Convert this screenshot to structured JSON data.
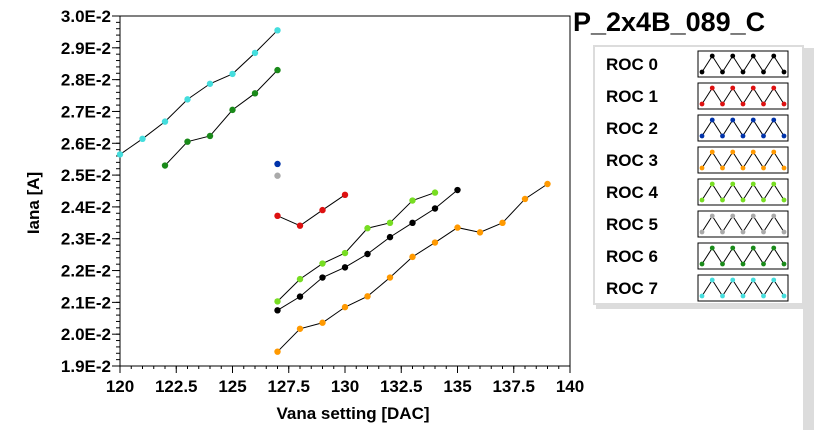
{
  "chart_data": {
    "type": "line",
    "title": "P_2x4B_089_C",
    "xlabel": "Vana setting [DAC]",
    "ylabel": "Iana [A]",
    "xlim": [
      120,
      140
    ],
    "ylim": [
      0.019,
      0.03
    ],
    "x_ticks": [
      120,
      122.5,
      125,
      127.5,
      130,
      132.5,
      135,
      137.5,
      140
    ],
    "x_tick_labels": [
      "120",
      "122.5",
      "125",
      "127.5",
      "130",
      "132.5",
      "135",
      "137.5",
      "140"
    ],
    "y_ticks": [
      0.019,
      0.02,
      0.021,
      0.022,
      0.023,
      0.024,
      0.025,
      0.026,
      0.027,
      0.028,
      0.029,
      0.03
    ],
    "y_tick_labels": [
      "1.9E-2",
      "2.0E-2",
      "2.1E-2",
      "2.2E-2",
      "2.3E-2",
      "2.4E-2",
      "2.5E-2",
      "2.6E-2",
      "2.7E-2",
      "2.8E-2",
      "2.9E-2",
      "3.0E-2"
    ],
    "grid": true,
    "legend_position": "right",
    "series": [
      {
        "name": "ROC 0",
        "color": "#000000",
        "x": [
          127,
          128,
          129,
          130,
          131,
          132,
          133,
          134,
          135
        ],
        "y": [
          0.02075,
          0.02118,
          0.02178,
          0.0221,
          0.02252,
          0.02305,
          0.0235,
          0.02395,
          0.02453
        ]
      },
      {
        "name": "ROC 1",
        "color": "#dd1111",
        "x": [
          127,
          128,
          129,
          130
        ],
        "y": [
          0.02372,
          0.02341,
          0.0239,
          0.02438
        ]
      },
      {
        "name": "ROC 2",
        "color": "#0033aa",
        "x": [
          127
        ],
        "y": [
          0.02535
        ]
      },
      {
        "name": "ROC 3",
        "color": "#ff9900",
        "x": [
          127,
          128,
          129,
          130,
          131,
          132,
          133,
          134,
          135,
          136,
          137,
          138,
          139
        ],
        "y": [
          0.01945,
          0.02017,
          0.02036,
          0.02085,
          0.02119,
          0.02178,
          0.02243,
          0.02288,
          0.02335,
          0.0232,
          0.0235,
          0.02425,
          0.02472
        ]
      },
      {
        "name": "ROC 4",
        "color": "#77dd22",
        "x": [
          127,
          128,
          129,
          130,
          131,
          132,
          133,
          134
        ],
        "y": [
          0.02103,
          0.02173,
          0.02222,
          0.02255,
          0.02333,
          0.0235,
          0.0242,
          0.02445
        ]
      },
      {
        "name": "ROC 5",
        "color": "#aaaaaa",
        "x": [
          127
        ],
        "y": [
          0.02498
        ]
      },
      {
        "name": "ROC 6",
        "color": "#1a8a1a",
        "x": [
          122,
          123,
          124,
          125,
          126,
          127
        ],
        "y": [
          0.0253,
          0.02605,
          0.02623,
          0.02705,
          0.02757,
          0.0283
        ]
      },
      {
        "name": "ROC 7",
        "color": "#44dddd",
        "x": [
          120,
          121,
          122,
          123,
          124,
          125,
          126,
          127
        ],
        "y": [
          0.02565,
          0.02614,
          0.02668,
          0.02738,
          0.02787,
          0.02818,
          0.02884,
          0.02955
        ]
      }
    ]
  }
}
